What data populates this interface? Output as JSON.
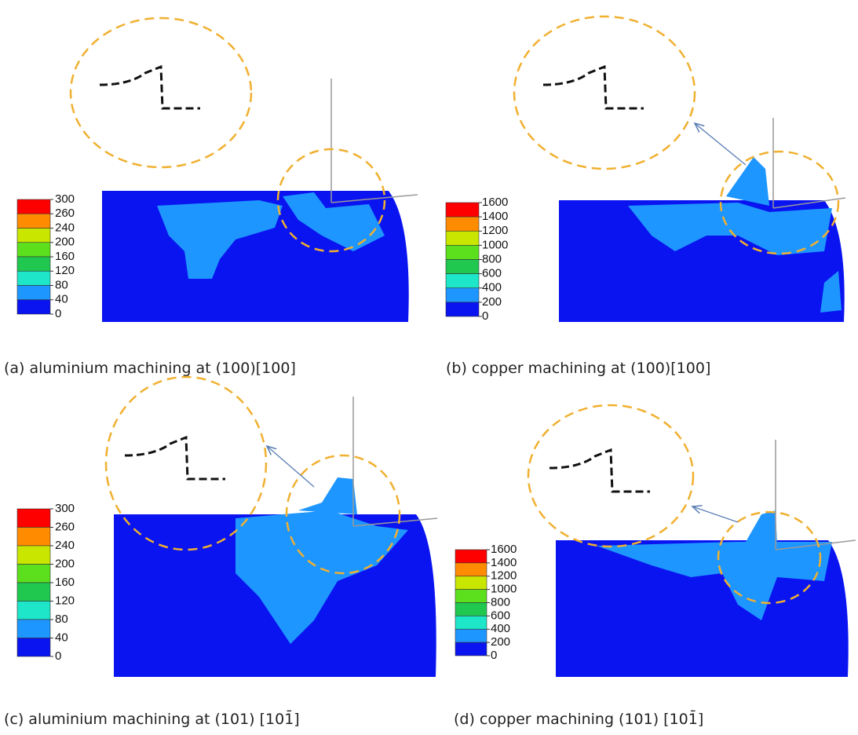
{
  "panels": [
    {
      "caption": "(a) aluminium machining at (100)[100]",
      "colorbar": {
        "ticks": [
          300,
          260,
          240,
          200,
          160,
          120,
          80,
          40,
          0
        ],
        "colors": [
          "#ff0000",
          "#ff8c00",
          "#c8e600",
          "#5ce01e",
          "#20c850",
          "#1ee6c8",
          "#1e96ff",
          "#0a14f0"
        ]
      }
    },
    {
      "caption": "(b) copper machining at (100)[100]",
      "colorbar": {
        "ticks": [
          1600,
          1400,
          1200,
          1000,
          800,
          600,
          400,
          200,
          0
        ],
        "colors": [
          "#ff0000",
          "#ff8c00",
          "#c8e600",
          "#5ce01e",
          "#20c850",
          "#1ee6c8",
          "#1e96ff",
          "#0a14f0"
        ]
      }
    },
    {
      "caption": "(c) aluminium machining at (101) [101̄]",
      "colorbar": {
        "ticks": [
          300,
          260,
          240,
          200,
          160,
          120,
          80,
          40,
          0
        ],
        "colors": [
          "#ff0000",
          "#ff8c00",
          "#c8e600",
          "#5ce01e",
          "#20c850",
          "#1ee6c8",
          "#1e96ff",
          "#0a14f0"
        ]
      }
    },
    {
      "caption": "(d) copper machining (101) [101̄]",
      "colorbar": {
        "ticks": [
          1600,
          1400,
          1200,
          1000,
          800,
          600,
          400,
          200,
          0
        ],
        "colors": [
          "#ff0000",
          "#ff8c00",
          "#c8e600",
          "#5ce01e",
          "#20c850",
          "#1ee6c8",
          "#1e96ff",
          "#0a14f0"
        ]
      }
    }
  ]
}
